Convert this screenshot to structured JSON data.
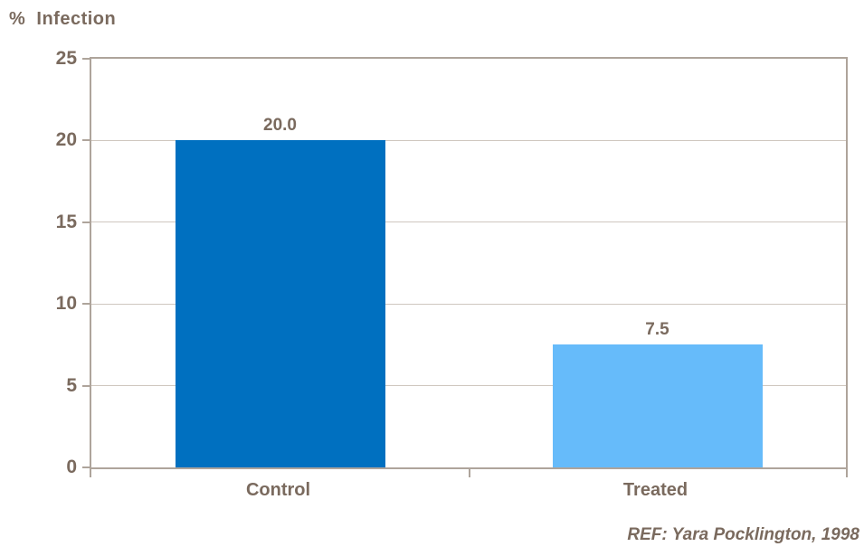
{
  "chart_data": {
    "type": "bar",
    "title": "%  Infection",
    "categories": [
      "Control",
      "Treated"
    ],
    "values": [
      20.0,
      7.5
    ],
    "data_labels": [
      "20.0",
      "7.5"
    ],
    "bar_colors": [
      "#0070c0",
      "#66bbfa"
    ],
    "xlabel": "",
    "ylabel": "% Infection",
    "ylim": [
      0,
      25
    ],
    "yticks": [
      0,
      5,
      10,
      15,
      20,
      25
    ],
    "gridlines_at": [
      5,
      10,
      15,
      20
    ],
    "grid": true,
    "legend": "none",
    "annotation": "REF: Yara Pocklington, 1998"
  },
  "colors": {
    "text": "#7a6a5e",
    "axis": "#aea49b",
    "gridline": "#cfc7bf",
    "bar_control": "#0070c0",
    "bar_treated": "#66bbfa",
    "background": "#ffffff"
  }
}
